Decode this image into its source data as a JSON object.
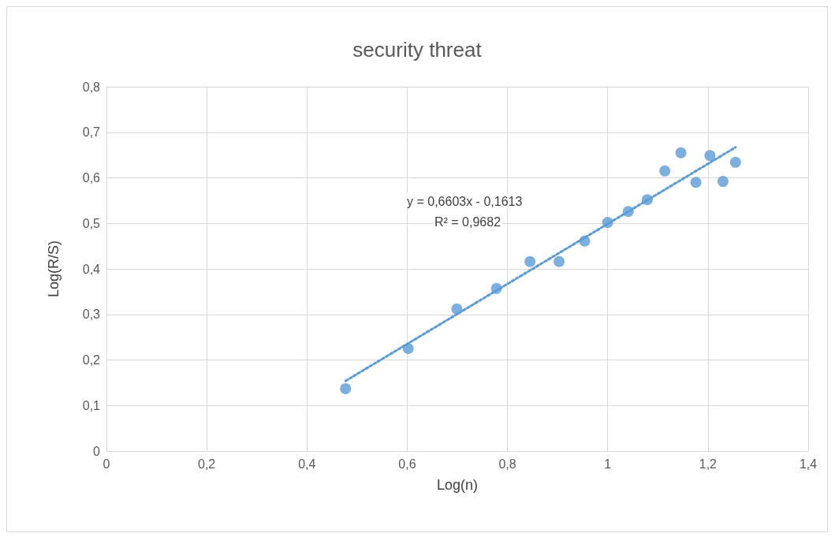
{
  "chart_data": {
    "type": "scatter",
    "title": "security threat",
    "xlabel": "Log(n)",
    "ylabel": "Log(R/S)",
    "series": [
      {
        "color": "#5b9bd5",
        "marker": "circle",
        "x": [
          0.477,
          0.602,
          0.699,
          0.778,
          0.845,
          0.903,
          0.954,
          1.0,
          1.041,
          1.079,
          1.114,
          1.146,
          1.176,
          1.204,
          1.23,
          1.255
        ],
        "values": [
          0.137,
          0.225,
          0.312,
          0.357,
          0.416,
          0.416,
          0.461,
          0.502,
          0.526,
          0.552,
          0.615,
          0.655,
          0.59,
          0.649,
          0.592,
          0.634
        ]
      },
      {
        "type": "line",
        "color": "#5b9bd5",
        "marker": "none",
        "line_style": "dotted",
        "x": [
          0.477,
          1.255
        ],
        "values": [
          0.154,
          0.667
        ]
      }
    ],
    "annotations": [
      "y = 0,6603x - 0,1613",
      "R² = 0,9682"
    ],
    "xlim": [
      0,
      1.4
    ],
    "xticks": [
      0,
      {
        "value": 0.2,
        "label": "0,2"
      },
      {
        "value": 0.4,
        "label": "0,4"
      },
      {
        "value": 0.6,
        "label": "0,6"
      },
      {
        "value": 0.8,
        "label": "0,8"
      },
      1,
      {
        "value": 1.2,
        "label": "1,2"
      },
      {
        "value": 1.4,
        "label": "1,4"
      }
    ],
    "ylim": [
      0,
      0.8
    ],
    "yticks": [
      0,
      {
        "value": 0.1,
        "label": "0,1"
      },
      {
        "value": 0.2,
        "label": "0,2"
      },
      {
        "value": 0.3,
        "label": "0,3"
      },
      {
        "value": 0.4,
        "label": "0,4"
      },
      {
        "value": 0.5,
        "label": "0,5"
      },
      {
        "value": 0.6,
        "label": "0,6"
      },
      {
        "value": 0.7,
        "label": "0,7"
      },
      {
        "value": 0.8,
        "label": "0,8"
      }
    ],
    "grid": true
  }
}
